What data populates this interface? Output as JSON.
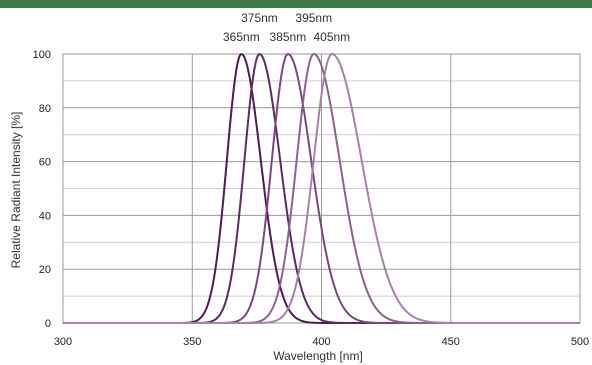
{
  "colors": {
    "header_bar": "#3d7a4a",
    "grid_major": "#9a9a9a",
    "grid_minor": "#cfcfcf",
    "series": [
      "#4b1d50",
      "#5e2a64",
      "#7a4880",
      "#8e6094",
      "#a383a8"
    ]
  },
  "chart_data": {
    "type": "line",
    "title": "",
    "xlabel": "Wavelength [nm]",
    "ylabel": "Relative Radiant Intensity [%]",
    "xlim": [
      300,
      500
    ],
    "ylim": [
      0,
      100
    ],
    "x_ticks": [
      "300",
      "350",
      "400",
      "450",
      "500"
    ],
    "y_ticks": [
      "0",
      "20",
      "40",
      "60",
      "80",
      "100"
    ],
    "grid": true,
    "peak_labels": [
      {
        "text": "375nm",
        "row": "top"
      },
      {
        "text": "395nm",
        "row": "top"
      },
      {
        "text": "365nm",
        "row": "bottom"
      },
      {
        "text": "385nm",
        "row": "bottom"
      },
      {
        "text": "405nm",
        "row": "bottom"
      }
    ],
    "series": [
      {
        "name": "365nm",
        "peak": 369,
        "sigma_left": 5.6,
        "sigma_right": 7.5,
        "x": [
          300,
          340,
          350,
          355,
          360,
          364,
          369,
          374,
          380,
          390,
          400,
          420,
          500
        ],
        "y": [
          0,
          0.5,
          2,
          8,
          28,
          65,
          100,
          80,
          35,
          7,
          1.5,
          0.3,
          0
        ]
      },
      {
        "name": "375nm",
        "peak": 376,
        "sigma_left": 5.8,
        "sigma_right": 8.0,
        "x": [
          300,
          345,
          355,
          362,
          368,
          372,
          376,
          381,
          388,
          398,
          410,
          430,
          500
        ],
        "y": [
          0,
          0.3,
          2,
          10,
          40,
          75,
          100,
          80,
          35,
          8,
          1.5,
          0.3,
          0
        ]
      },
      {
        "name": "385nm",
        "peak": 387,
        "sigma_left": 6.2,
        "sigma_right": 9.0,
        "x": [
          300,
          350,
          362,
          370,
          378,
          383,
          387,
          393,
          400,
          410,
          425,
          445,
          500
        ],
        "y": [
          0,
          0.2,
          2,
          9,
          38,
          78,
          100,
          80,
          38,
          12,
          2,
          0.3,
          0
        ]
      },
      {
        "name": "395nm",
        "peak": 397,
        "sigma_left": 6.6,
        "sigma_right": 10.0,
        "x": [
          300,
          360,
          372,
          380,
          388,
          393,
          397,
          403,
          410,
          420,
          435,
          455,
          500
        ],
        "y": [
          0,
          0.2,
          2,
          9,
          38,
          78,
          100,
          80,
          40,
          14,
          3,
          0.4,
          0
        ]
      },
      {
        "name": "405nm",
        "peak": 404,
        "sigma_left": 7.0,
        "sigma_right": 11.5,
        "x": [
          300,
          365,
          378,
          386,
          395,
          400,
          404,
          410,
          418,
          430,
          445,
          470,
          500
        ],
        "y": [
          0,
          0.2,
          2,
          9,
          40,
          80,
          100,
          82,
          42,
          15,
          3,
          0.4,
          0
        ]
      }
    ]
  }
}
